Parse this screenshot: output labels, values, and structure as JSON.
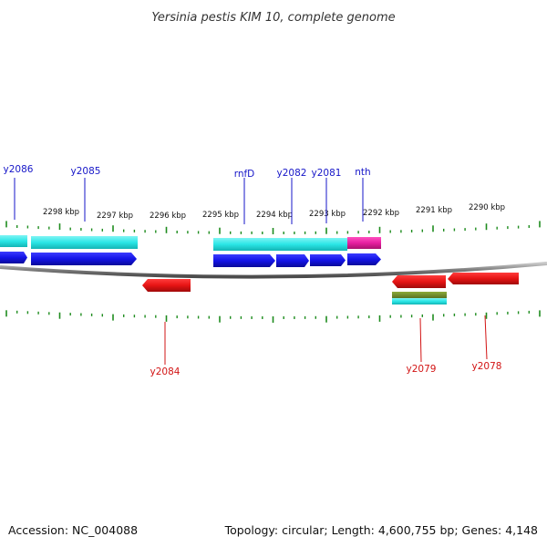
{
  "title": "Yersinia pestis KIM 10, complete genome",
  "footer": {
    "accession": "Accession: NC_004088",
    "summary": "Topology: circular; Length: 4,600,755 bp; Genes: 4,148"
  },
  "scale_labels": [
    "2298 kbp",
    "2297 kbp",
    "2296 kbp",
    "2295 kbp",
    "2294 kbp",
    "2293 kbp",
    "2292 kbp",
    "2291 kbp",
    "2290 kbp"
  ],
  "genes_top": [
    "y2086",
    "y2085",
    "rnfD",
    "y2082",
    "y2081",
    "nth"
  ],
  "genes_bottom": [
    "y2084",
    "y2079",
    "y2078"
  ],
  "colors": {
    "backbone": "#8c8c8c",
    "ticks": "#1e8c1e",
    "forward_cds": "#1414e6",
    "forward_gene": "#2ae6e6",
    "repeat_region": "#e61ea0",
    "reverse_cds": "#e61414",
    "reverse_misc": "#6e8c28",
    "label_top": "#1616c8",
    "label_bottom": "#d21414"
  }
}
